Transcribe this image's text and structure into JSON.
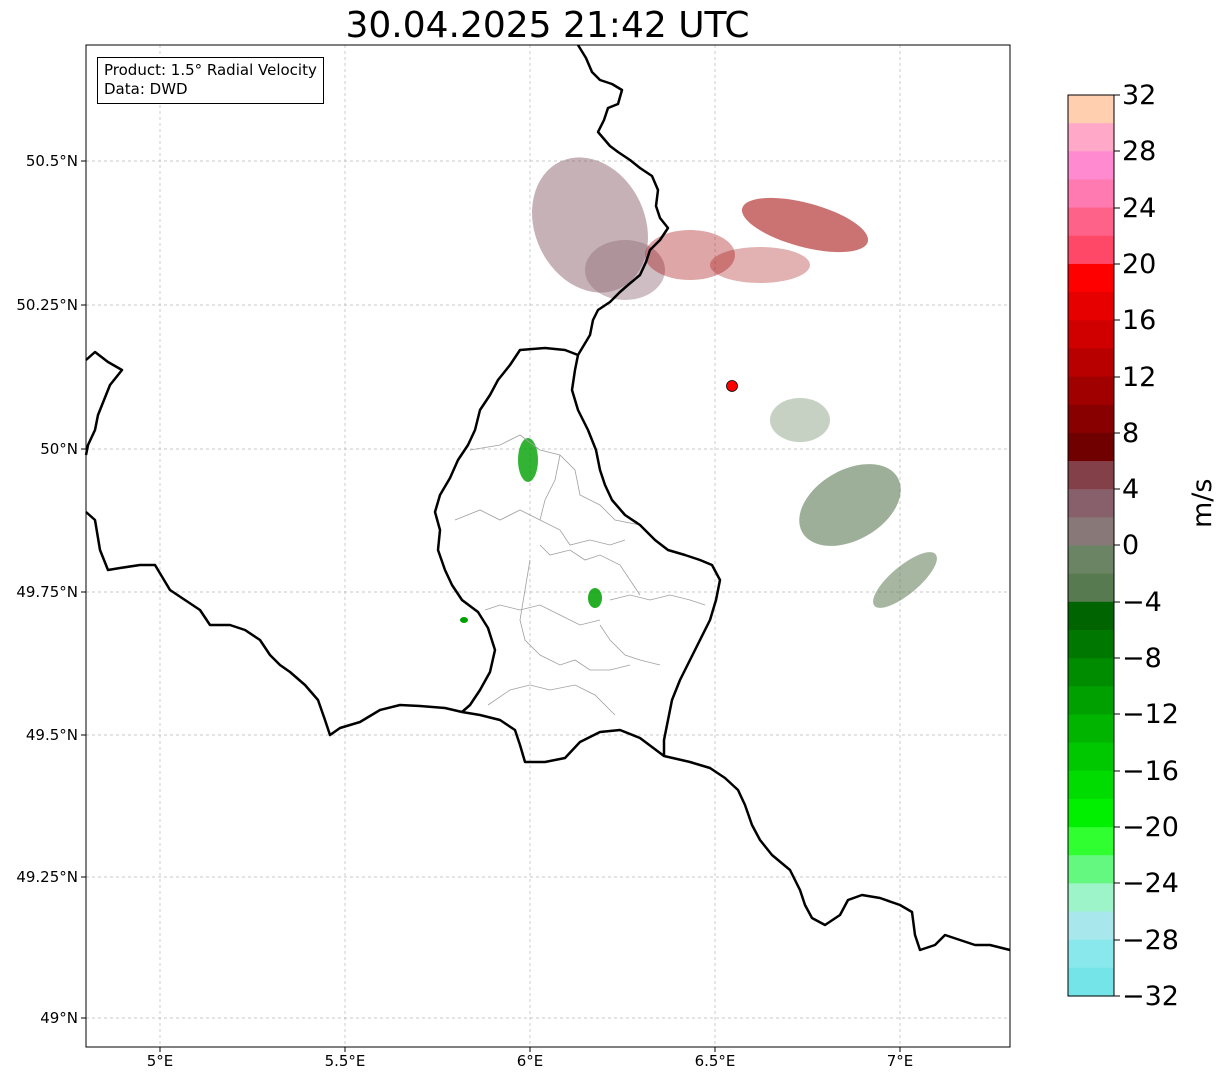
{
  "title": "30.04.2025 21:42 UTC",
  "info": {
    "product": "Product: 1.5° Radial Velocity",
    "data_source": "Data: DWD"
  },
  "axes": {
    "y_ticks": [
      "50.5°N",
      "50.25°N",
      "50°N",
      "49.75°N",
      "49.5°N",
      "49.25°N",
      "49°N"
    ],
    "x_ticks": [
      "5°E",
      "5.5°E",
      "6°E",
      "6.5°E",
      "7°E"
    ]
  },
  "colorbar": {
    "unit": "m/s",
    "tick_labels": [
      "32",
      "28",
      "24",
      "20",
      "16",
      "12",
      "8",
      "4",
      "0",
      "−4",
      "−8",
      "−12",
      "−16",
      "−20",
      "−24",
      "−28",
      "−32"
    ],
    "range": [
      -32,
      32
    ],
    "colors_top_to_bottom": [
      "#ffcfaf",
      "#ffa8c8",
      "#ff8ad0",
      "#ff7ab0",
      "#ff6288",
      "#ff4868",
      "#ff0000",
      "#e60000",
      "#d00000",
      "#b80000",
      "#a00000",
      "#880000",
      "#700000",
      "#844048",
      "#88606c",
      "#887878",
      "#6a8464",
      "#587a50",
      "#006400",
      "#007800",
      "#008c00",
      "#00a000",
      "#00b400",
      "#00c800",
      "#00dc00",
      "#00f000",
      "#30ff30",
      "#64f880",
      "#9cf4c8",
      "#a8e8ec",
      "#88e8ec",
      "#74e4e8"
    ]
  },
  "radar_site": {
    "lon": 6.55,
    "lat": 50.11,
    "color": "#ff0000"
  },
  "legend_colors": {
    "inbound_dark_green": "#5c7a54",
    "inbound_green": "#00a000",
    "outbound_dark_red": "#a00000",
    "outbound_mauve": "#88606c"
  }
}
